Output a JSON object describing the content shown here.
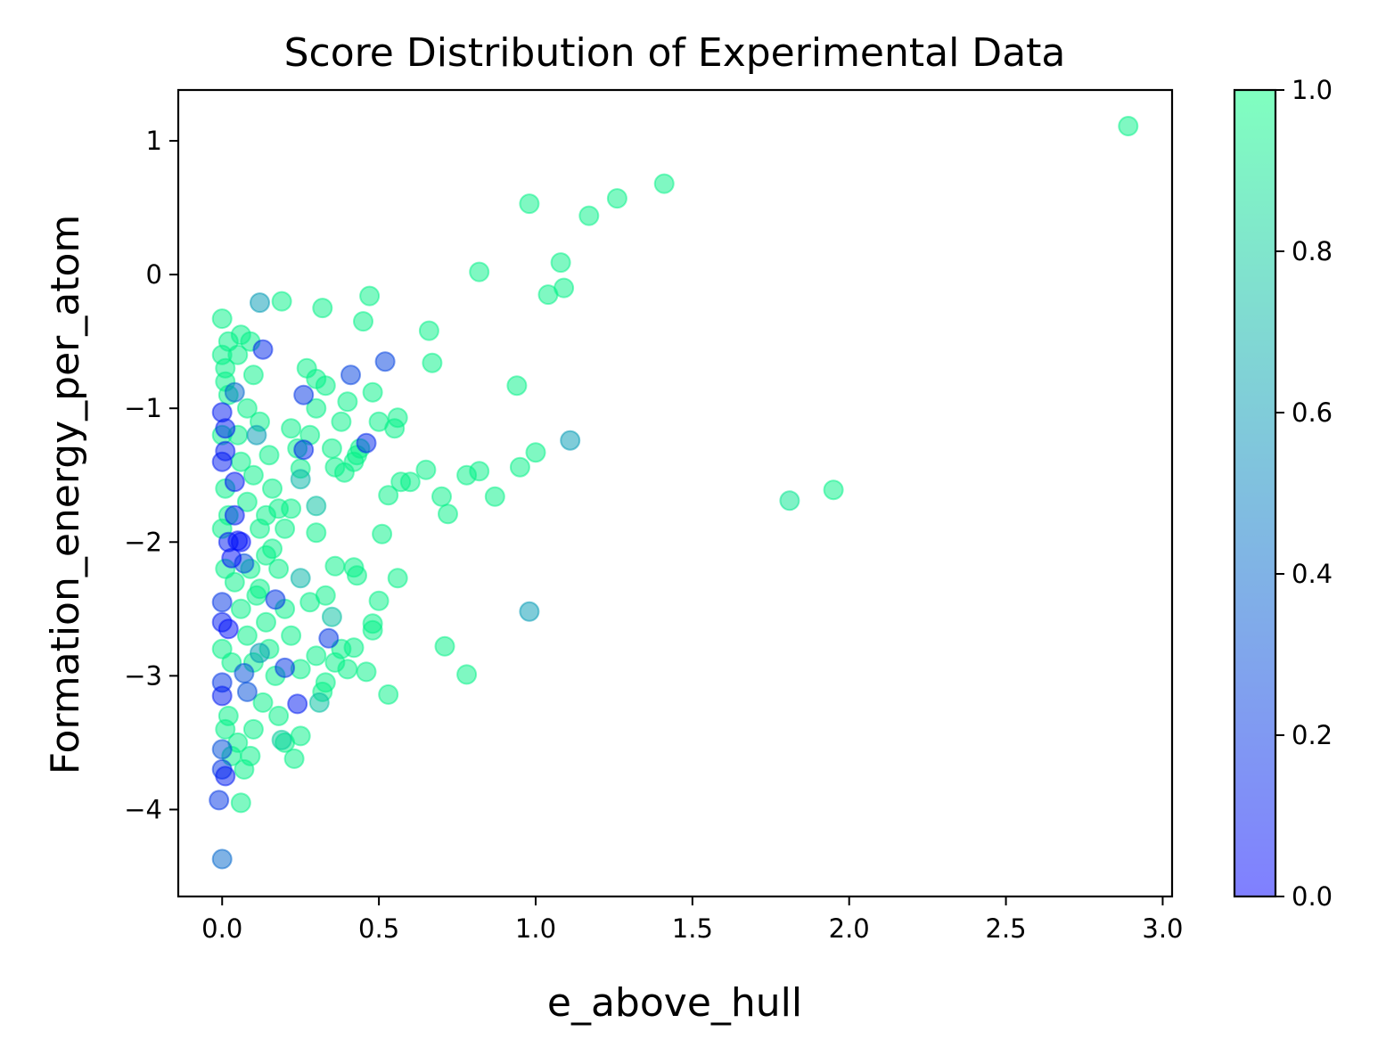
{
  "chart_data": {
    "type": "scatter",
    "title": "Score Distribution of Experimental Data",
    "xlabel": "e_above_hull",
    "ylabel": "Formation_energy_per_atom",
    "xlim": [
      -0.14,
      3.03
    ],
    "ylim": [
      -4.65,
      1.38
    ],
    "xticks": [
      0.0,
      0.5,
      1.0,
      1.5,
      2.0,
      2.5,
      3.0
    ],
    "xtick_labels": [
      "0.0",
      "0.5",
      "1.0",
      "1.5",
      "2.0",
      "2.5",
      "3.0"
    ],
    "yticks": [
      1,
      0,
      -1,
      -2,
      -3,
      -4
    ],
    "ytick_labels": [
      "1",
      "0",
      "−1",
      "−2",
      "−3",
      "−4"
    ],
    "grid": false,
    "colormap": "winter",
    "color_low": "#0000ff",
    "color_high": "#00ff80",
    "alpha": 0.5,
    "colorbar": {
      "range": [
        0.0,
        1.0
      ],
      "ticks": [
        0.0,
        0.2,
        0.4,
        0.6,
        0.8,
        1.0
      ],
      "tick_labels": [
        "0.0",
        "0.2",
        "0.4",
        "0.6",
        "0.8",
        "1.0"
      ]
    },
    "points": [
      [
        2.89,
        1.11,
        0.95
      ],
      [
        1.41,
        0.68,
        0.95
      ],
      [
        1.26,
        0.57,
        0.95
      ],
      [
        1.17,
        0.44,
        0.95
      ],
      [
        0.98,
        0.53,
        0.95
      ],
      [
        1.08,
        0.09,
        0.95
      ],
      [
        0.82,
        0.02,
        0.95
      ],
      [
        1.09,
        -0.1,
        0.95
      ],
      [
        1.04,
        -0.15,
        0.95
      ],
      [
        0.47,
        -0.16,
        0.95
      ],
      [
        0.66,
        -0.42,
        0.95
      ],
      [
        0.67,
        -0.66,
        0.95
      ],
      [
        0.45,
        -0.35,
        0.95
      ],
      [
        0.32,
        -0.25,
        0.95
      ],
      [
        0.19,
        -0.2,
        0.95
      ],
      [
        0.12,
        -0.21,
        0.6
      ],
      [
        0.13,
        -0.56,
        0.15
      ],
      [
        0.52,
        -0.65,
        0.25
      ],
      [
        0.41,
        -0.75,
        0.25
      ],
      [
        0.94,
        -0.83,
        0.95
      ],
      [
        1.11,
        -1.24,
        0.6
      ],
      [
        1.0,
        -1.33,
        0.95
      ],
      [
        0.95,
        -1.44,
        0.95
      ],
      [
        0.82,
        -1.47,
        0.95
      ],
      [
        0.78,
        -1.5,
        0.95
      ],
      [
        0.87,
        -1.66,
        0.95
      ],
      [
        0.7,
        -1.66,
        0.95
      ],
      [
        0.72,
        -1.79,
        0.95
      ],
      [
        0.65,
        -1.46,
        0.95
      ],
      [
        1.81,
        -1.69,
        0.9
      ],
      [
        1.95,
        -1.61,
        0.95
      ],
      [
        0.98,
        -2.52,
        0.6
      ],
      [
        0.71,
        -2.78,
        0.95
      ],
      [
        0.78,
        -2.99,
        0.95
      ],
      [
        0.53,
        -3.14,
        0.95
      ],
      [
        0.5,
        -2.44,
        0.95
      ],
      [
        0.56,
        -2.27,
        0.95
      ],
      [
        0.51,
        -1.94,
        0.95
      ],
      [
        0.48,
        -2.66,
        0.95
      ],
      [
        0.48,
        -2.61,
        0.95
      ],
      [
        0.46,
        -2.97,
        0.95
      ],
      [
        0.42,
        -2.79,
        0.95
      ],
      [
        0.42,
        -2.19,
        0.95
      ],
      [
        0.43,
        -2.25,
        0.95
      ],
      [
        0.36,
        -2.18,
        0.95
      ],
      [
        0.35,
        -2.56,
        0.75
      ],
      [
        0.34,
        -2.72,
        0.2
      ],
      [
        0.33,
        -2.4,
        0.95
      ],
      [
        0.31,
        -3.2,
        0.75
      ],
      [
        0.32,
        -3.12,
        0.95
      ],
      [
        0.3,
        -1.73,
        0.75
      ],
      [
        0.3,
        -1.93,
        0.95
      ],
      [
        0.25,
        -2.27,
        0.7
      ],
      [
        0.25,
        -1.53,
        0.7
      ],
      [
        0.26,
        -0.9,
        0.2
      ],
      [
        0.26,
        -1.31,
        0.15
      ],
      [
        0.46,
        -1.26,
        0.15
      ],
      [
        0.24,
        -3.21,
        0.1
      ],
      [
        0.17,
        -2.43,
        0.2
      ],
      [
        0.2,
        -2.94,
        0.2
      ],
      [
        0.12,
        -2.83,
        0.6
      ],
      [
        0.11,
        -1.2,
        0.6
      ],
      [
        0.08,
        -3.12,
        0.3
      ],
      [
        0.07,
        -2.98,
        0.3
      ],
      [
        0.07,
        -2.16,
        0.3
      ],
      [
        0.06,
        -2.0,
        0.05
      ],
      [
        0.05,
        -1.99,
        0.05
      ],
      [
        0.04,
        -1.8,
        0.1
      ],
      [
        0.04,
        -1.55,
        0.1
      ],
      [
        0.03,
        -2.12,
        0.05
      ],
      [
        0.02,
        -2.65,
        0.05
      ],
      [
        0.02,
        -2.0,
        0.1
      ],
      [
        0.01,
        -1.32,
        0.1
      ],
      [
        0.01,
        -1.15,
        0.1
      ],
      [
        0.0,
        -1.03,
        0.1
      ],
      [
        0.0,
        -1.4,
        0.1
      ],
      [
        0.0,
        -2.45,
        0.2
      ],
      [
        0.0,
        -2.6,
        0.1
      ],
      [
        0.0,
        -3.05,
        0.2
      ],
      [
        0.0,
        -3.15,
        0.1
      ],
      [
        0.0,
        -3.55,
        0.3
      ],
      [
        0.0,
        -3.7,
        0.2
      ],
      [
        0.01,
        -3.75,
        0.1
      ],
      [
        -0.01,
        -3.93,
        0.2
      ],
      [
        0.0,
        -4.37,
        0.4
      ],
      [
        0.04,
        -0.88,
        0.4
      ],
      [
        0.02,
        -0.5,
        0.95
      ],
      [
        0.0,
        -0.33,
        0.95
      ],
      [
        0.01,
        -0.7,
        0.95
      ],
      [
        0.02,
        -0.9,
        0.95
      ],
      [
        0.05,
        -0.6,
        0.95
      ],
      [
        0.06,
        -0.45,
        0.95
      ],
      [
        0.09,
        -0.5,
        0.95
      ],
      [
        0.1,
        -0.75,
        0.95
      ],
      [
        0.08,
        -1.0,
        0.95
      ],
      [
        0.12,
        -1.1,
        0.95
      ],
      [
        0.15,
        -1.35,
        0.95
      ],
      [
        0.16,
        -1.6,
        0.95
      ],
      [
        0.18,
        -1.75,
        0.95
      ],
      [
        0.2,
        -1.9,
        0.95
      ],
      [
        0.22,
        -1.15,
        0.95
      ],
      [
        0.25,
        -1.45,
        0.95
      ],
      [
        0.28,
        -1.2,
        0.95
      ],
      [
        0.3,
        -0.78,
        0.95
      ],
      [
        0.35,
        -1.3,
        0.95
      ],
      [
        0.38,
        -1.1,
        0.95
      ],
      [
        0.4,
        -0.95,
        0.95
      ],
      [
        0.43,
        -1.35,
        0.95
      ],
      [
        0.48,
        -0.88,
        0.95
      ],
      [
        0.5,
        -1.1,
        0.95
      ],
      [
        0.55,
        -1.15,
        0.95
      ],
      [
        0.57,
        -1.55,
        0.95
      ],
      [
        0.53,
        -1.65,
        0.95
      ],
      [
        0.6,
        -1.55,
        0.95
      ],
      [
        0.56,
        -1.07,
        0.95
      ],
      [
        0.02,
        -1.8,
        0.95
      ],
      [
        0.04,
        -2.3,
        0.95
      ],
      [
        0.06,
        -2.5,
        0.95
      ],
      [
        0.08,
        -2.7,
        0.95
      ],
      [
        0.1,
        -2.9,
        0.95
      ],
      [
        0.12,
        -2.35,
        0.95
      ],
      [
        0.14,
        -2.6,
        0.95
      ],
      [
        0.18,
        -2.2,
        0.95
      ],
      [
        0.2,
        -2.5,
        0.95
      ],
      [
        0.22,
        -2.7,
        0.95
      ],
      [
        0.25,
        -2.95,
        0.95
      ],
      [
        0.28,
        -2.45,
        0.95
      ],
      [
        0.3,
        -2.85,
        0.95
      ],
      [
        0.33,
        -3.05,
        0.95
      ],
      [
        0.36,
        -2.9,
        0.95
      ],
      [
        0.38,
        -2.8,
        0.95
      ],
      [
        0.4,
        -2.95,
        0.95
      ],
      [
        0.02,
        -3.3,
        0.95
      ],
      [
        0.05,
        -3.5,
        0.95
      ],
      [
        0.07,
        -3.7,
        0.95
      ],
      [
        0.09,
        -3.6,
        0.95
      ],
      [
        0.06,
        -3.95,
        0.95
      ],
      [
        0.1,
        -3.4,
        0.95
      ],
      [
        0.13,
        -3.2,
        0.95
      ],
      [
        0.18,
        -3.3,
        0.95
      ],
      [
        0.2,
        -3.5,
        0.95
      ],
      [
        0.23,
        -3.62,
        0.95
      ],
      [
        0.25,
        -3.45,
        0.95
      ],
      [
        0.19,
        -3.48,
        0.8
      ],
      [
        0.16,
        -2.05,
        0.95
      ],
      [
        0.14,
        -1.8,
        0.95
      ],
      [
        0.22,
        -1.75,
        0.95
      ],
      [
        0.24,
        -1.3,
        0.95
      ],
      [
        0.27,
        -0.7,
        0.95
      ],
      [
        0.3,
        -1.0,
        0.95
      ],
      [
        0.33,
        -0.83,
        0.95
      ],
      [
        0.36,
        -1.44,
        0.95
      ],
      [
        0.39,
        -1.48,
        0.95
      ],
      [
        0.42,
        -1.4,
        0.95
      ],
      [
        0.44,
        -1.3,
        0.95
      ],
      [
        0.0,
        -0.6,
        0.95
      ],
      [
        0.01,
        -0.8,
        0.95
      ],
      [
        0.0,
        -1.2,
        0.95
      ],
      [
        0.01,
        -1.6,
        0.95
      ],
      [
        0.0,
        -1.9,
        0.95
      ],
      [
        0.01,
        -2.2,
        0.95
      ],
      [
        0.0,
        -2.8,
        0.95
      ],
      [
        0.01,
        -3.4,
        0.95
      ],
      [
        0.03,
        -2.9,
        0.95
      ],
      [
        0.03,
        -3.6,
        0.95
      ],
      [
        0.05,
        -1.2,
        0.95
      ],
      [
        0.06,
        -1.4,
        0.95
      ],
      [
        0.08,
        -1.7,
        0.95
      ],
      [
        0.1,
        -1.5,
        0.95
      ],
      [
        0.12,
        -1.9,
        0.95
      ],
      [
        0.14,
        -2.1,
        0.95
      ],
      [
        0.11,
        -2.4,
        0.95
      ],
      [
        0.09,
        -2.2,
        0.95
      ],
      [
        0.15,
        -2.8,
        0.95
      ],
      [
        0.17,
        -3.0,
        0.95
      ]
    ]
  }
}
